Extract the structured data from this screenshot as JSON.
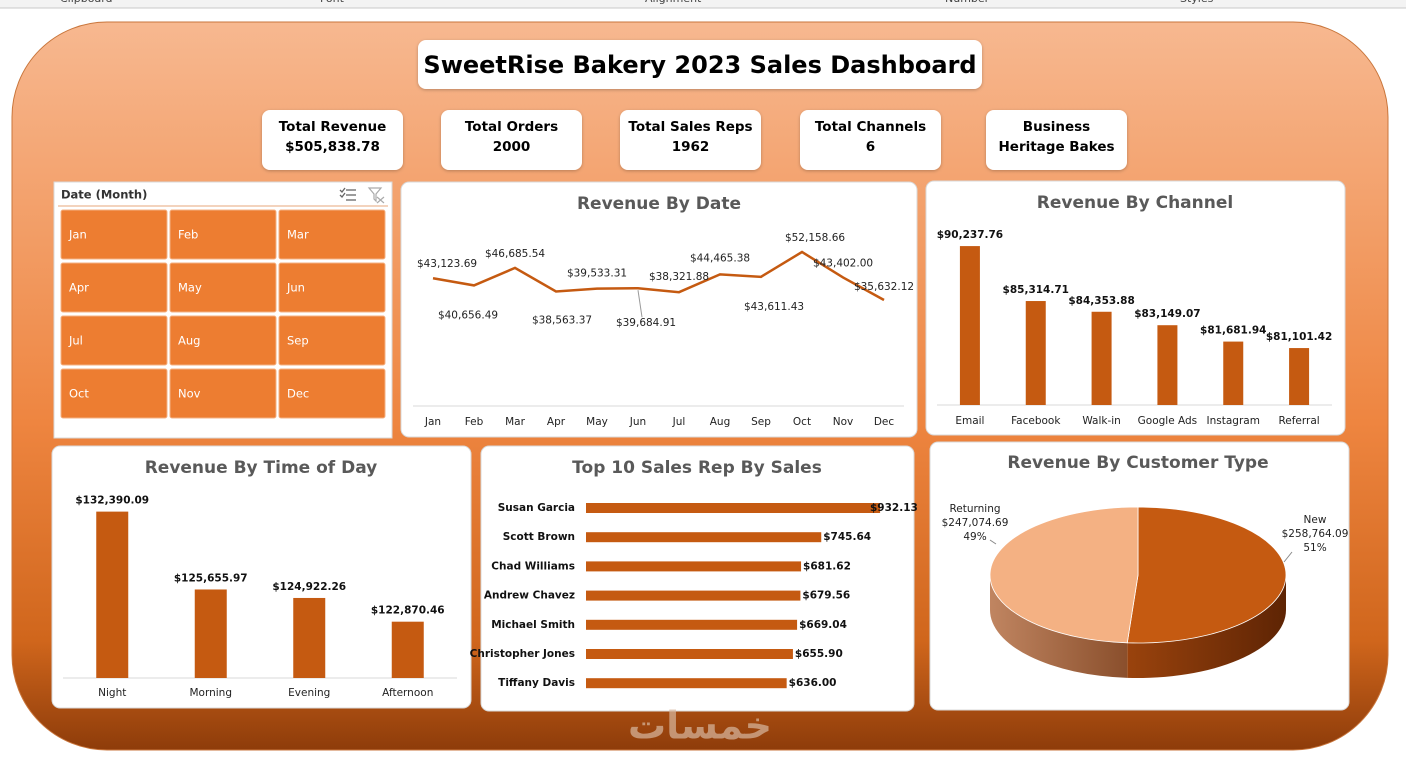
{
  "ribbon": [
    "Clipboard",
    "Font",
    "Alignment",
    "Number",
    "Styles"
  ],
  "header": {
    "title": "SweetRise Bakery 2023 Sales Dashboard"
  },
  "kpis": [
    {
      "label": "Total Revenue",
      "value": "$505,838.78"
    },
    {
      "label": "Total Orders",
      "value": "2000"
    },
    {
      "label": "Total Sales Reps",
      "value": "1962"
    },
    {
      "label": "Total Channels",
      "value": "6"
    },
    {
      "label": "Business",
      "value": "Heritage Bakes"
    }
  ],
  "slicer": {
    "title": "Date (Month)",
    "items": [
      "Jan",
      "Feb",
      "Mar",
      "Apr",
      "May",
      "Jun",
      "Jul",
      "Aug",
      "Sep",
      "Oct",
      "Nov",
      "Dec"
    ]
  },
  "chart_data": [
    {
      "type": "line",
      "title": "Revenue By Date",
      "categories": [
        "Jan",
        "Feb",
        "Mar",
        "Apr",
        "May",
        "Jun",
        "Jul",
        "Aug",
        "Sep",
        "Oct",
        "Nov",
        "Dec"
      ],
      "values": [
        43123.69,
        40656.49,
        46685.54,
        38563.37,
        39533.31,
        39684.91,
        38321.88,
        44465.38,
        43611.43,
        52158.66,
        43402.0,
        35632.12
      ],
      "value_labels": [
        "$43,123.69",
        "$40,656.49",
        "$46,685.54",
        "$38,563.37",
        "$39,533.31",
        "$39,684.91",
        "$38,321.88",
        "$44,465.38",
        "$43,611.43",
        "$52,158.66",
        "$43,402.00",
        "$35,632.12"
      ],
      "color": "#c55a11"
    },
    {
      "type": "bar",
      "title": "Revenue By Channel",
      "categories": [
        "Email",
        "Facebook",
        "Walk-in",
        "Google Ads",
        "Instagram",
        "Referral"
      ],
      "values": [
        90237.76,
        85314.71,
        84353.88,
        83149.07,
        81681.94,
        81101.42
      ],
      "value_labels": [
        "$90,237.76",
        "$85,314.71",
        "$84,353.88",
        "$83,149.07",
        "$81,681.94",
        "$81,101.42"
      ],
      "ylim": [
        76000,
        91500
      ],
      "color": "#c55a11"
    },
    {
      "type": "bar",
      "title": "Revenue By Time of Day",
      "categories": [
        "Night",
        "Morning",
        "Evening",
        "Afternoon"
      ],
      "values": [
        132390.09,
        125655.97,
        124922.26,
        122870.46
      ],
      "value_labels": [
        "$132,390.09",
        "$125,655.97",
        "$124,922.26",
        "$122,870.46"
      ],
      "ylim": [
        118000,
        134000
      ],
      "color": "#c55a11"
    },
    {
      "type": "hbar",
      "title": "Top 10 Sales Rep By Sales",
      "categories": [
        "Susan Garcia",
        "Scott Brown",
        "Chad Williams",
        "Andrew Chavez",
        "Michael Smith",
        "Christopher Jones",
        "Tiffany Davis"
      ],
      "values": [
        932.13,
        745.64,
        681.62,
        679.56,
        669.04,
        655.9,
        636.0
      ],
      "value_labels": [
        "$932.13",
        "$745.64",
        "$681.62",
        "$679.56",
        "$669.04",
        "$655.90",
        "$636.00"
      ],
      "xlim": [
        0,
        1000
      ],
      "color": "#c55a11"
    },
    {
      "type": "pie",
      "title": "Revenue By Customer Type",
      "categories": [
        "New",
        "Returning"
      ],
      "values": [
        258764.09,
        247074.69
      ],
      "value_labels": [
        "$258,764.09",
        "$247,074.69"
      ],
      "percent_labels": [
        "51%",
        "49%"
      ],
      "colors": [
        "#c55a11",
        "#f4b183"
      ]
    }
  ],
  "watermark": "خمسات"
}
